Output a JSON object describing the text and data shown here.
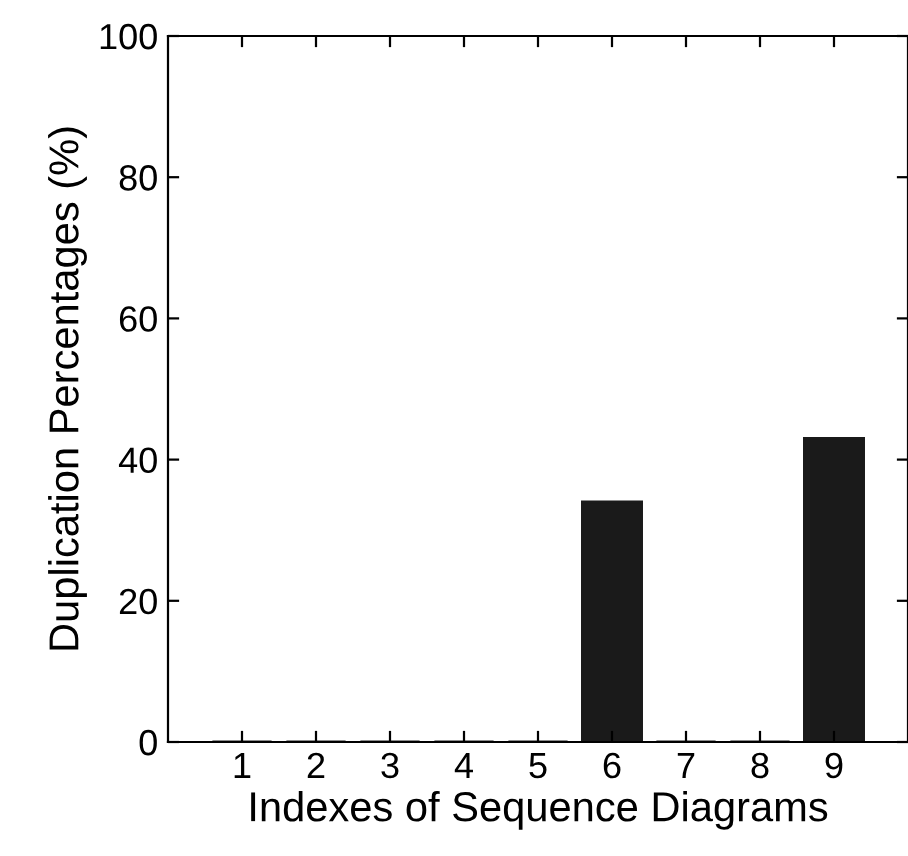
{
  "chart_data": {
    "type": "bar",
    "xlabel": "Indexes of Sequence Diagrams",
    "ylabel": "Duplication Percentages (%)",
    "categories": [
      "1",
      "2",
      "3",
      "4",
      "5",
      "6",
      "7",
      "8",
      "9"
    ],
    "values": [
      0,
      0,
      0,
      0,
      0,
      34,
      0,
      0,
      43
    ],
    "color": "#1a1a1a",
    "ylim": [
      0,
      100
    ],
    "yticks": [
      0,
      20,
      40,
      60,
      80,
      100
    ],
    "grid": false
  }
}
